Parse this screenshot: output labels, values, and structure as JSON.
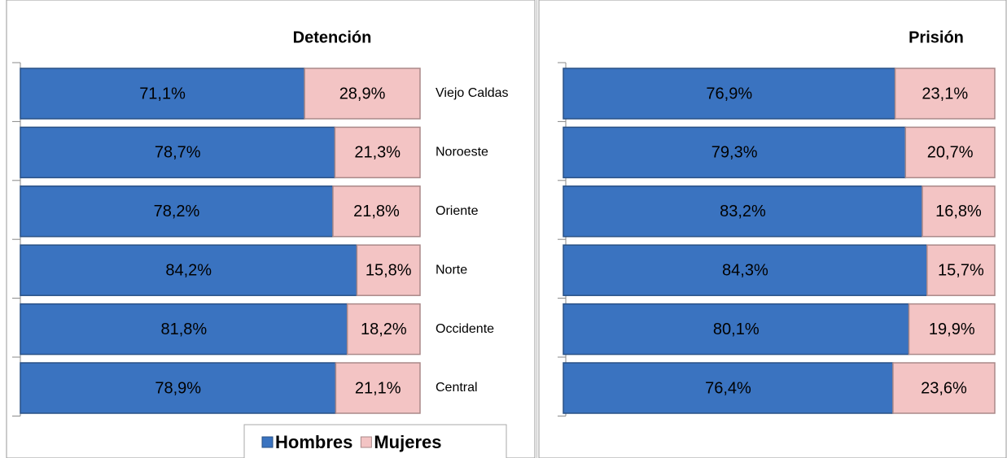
{
  "chart_data": [
    {
      "type": "bar",
      "orientation": "horizontal",
      "stacked": true,
      "title": "Detención",
      "categories": [
        "Viejo Caldas",
        "Noroeste",
        "Oriente",
        "Norte",
        "Occidente",
        "Central"
      ],
      "xlim": [
        0,
        100
      ],
      "legend": "bottom",
      "series": [
        {
          "name": "Hombres",
          "color": "#3a73c0",
          "values": [
            71.1,
            78.7,
            78.2,
            84.2,
            81.8,
            78.9
          ],
          "value_labels": [
            "71,1%",
            "78,7%",
            "78,2%",
            "84,2%",
            "81,8%",
            "78,9%"
          ]
        },
        {
          "name": "Mujeres",
          "color": "#f3c4c4",
          "values": [
            28.9,
            21.3,
            21.8,
            15.8,
            18.2,
            21.1
          ],
          "value_labels": [
            "28,9%",
            "21,3%",
            "21,8%",
            "15,8%",
            "18,2%",
            "21,1%"
          ]
        }
      ]
    },
    {
      "type": "bar",
      "orientation": "horizontal",
      "stacked": true,
      "title": "Prisión",
      "xlim": [
        0,
        100
      ],
      "series": [
        {
          "color": "#3a73c0",
          "values": [
            76.9,
            79.3,
            83.2,
            84.3,
            80.1,
            76.4
          ],
          "value_labels": [
            "76,9%",
            "79,3%",
            "83,2%",
            "84,3%",
            "80,1%",
            "76,4%"
          ]
        },
        {
          "color": "#f3c4c4",
          "values": [
            23.1,
            20.7,
            16.8,
            15.7,
            19.9,
            23.6
          ],
          "value_labels": [
            "23,1%",
            "20,7%",
            "16,8%",
            "15,7%",
            "19,9%",
            "23,6%"
          ]
        }
      ]
    }
  ]
}
